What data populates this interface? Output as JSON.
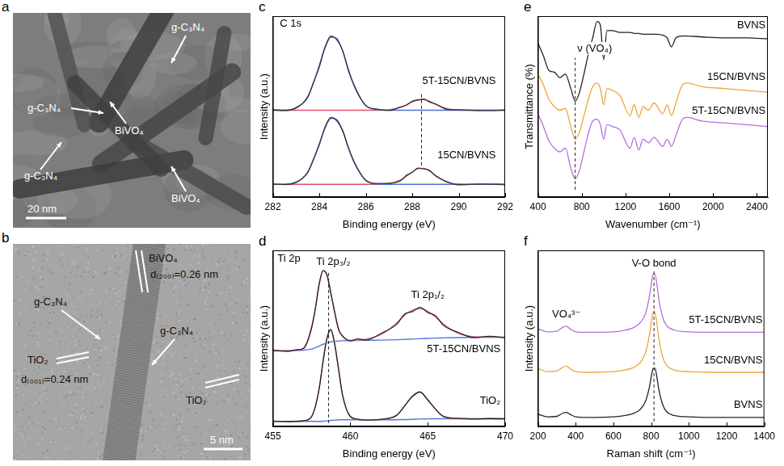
{
  "images": [
    {
      "panel": "a",
      "annotations": [
        "g-C₃N₄",
        "g-C₃N₄",
        "BiVO₄",
        "g-C₃N₄",
        "BiVO₄"
      ],
      "scale_bar": "20 nm"
    },
    {
      "panel": "b",
      "annotations": [
        "BiVO₄",
        "d₍₂₀₀₎=0.26 nm",
        "g-C₃N₄",
        "g-C₃N₄",
        "TiO₂",
        "d₍₀₀₁₎=0.24 nm",
        "TiO₂"
      ],
      "scale_bar": "5 nm"
    }
  ],
  "chart_data": [
    {
      "panel": "c",
      "type": "line",
      "title": "C 1s",
      "x_label": "Binding energy (eV)",
      "y_label": "Intensity (a.u.)",
      "x": [
        282,
        282.5,
        283,
        283.5,
        283.75,
        284,
        284.25,
        284.5,
        284.75,
        285,
        285.25,
        285.5,
        286,
        286.5,
        287,
        287.5,
        287.75,
        288,
        288.25,
        288.5,
        288.75,
        289,
        289.5,
        290,
        291,
        292
      ],
      "xlim": [
        282,
        292
      ],
      "xticks": [
        282,
        284,
        286,
        288,
        290,
        292
      ],
      "ylim": [
        0,
        10
      ],
      "tick_labels": "x",
      "grid": false,
      "reference_lines": [
        288.4
      ],
      "series": [
        {
          "name": "5T-15CN/BVNS",
          "color": "#333333",
          "values": [
            4.83,
            4.78,
            4.95,
            5.5,
            6.35,
            7.2,
            8.3,
            8.9,
            8.7,
            8.12,
            7.0,
            6.18,
            5.05,
            4.86,
            4.79,
            4.98,
            5.08,
            5.3,
            5.36,
            5.42,
            5.25,
            5.15,
            4.85,
            4.83,
            4.78,
            4.81
          ],
          "components": [
            {
              "color": "#4a72d6",
              "values": [
                4.8,
                4.81,
                4.91,
                5.56,
                6.3,
                7.29,
                8.26,
                8.84,
                8.77,
                8.08,
                7.08,
                6.13,
                5.07,
                4.83,
                4.8,
                4.8,
                4.8,
                4.8,
                4.8,
                4.8,
                4.8,
                4.8,
                4.8,
                4.8,
                4.8,
                4.8
              ]
            },
            {
              "color": "#e0506a",
              "values": [
                4.8,
                4.8,
                4.8,
                4.8,
                4.8,
                4.8,
                4.8,
                4.8,
                4.8,
                4.8,
                4.8,
                4.8,
                4.8,
                4.8,
                4.82,
                4.96,
                5.1,
                5.26,
                5.38,
                5.39,
                5.29,
                5.13,
                4.88,
                4.81,
                4.8,
                4.8
              ]
            }
          ]
        },
        {
          "name": "15CN/BVNS",
          "color": "#333333",
          "values": [
            0.72,
            0.69,
            0.83,
            1.35,
            2.1,
            2.9,
            3.88,
            4.4,
            4.22,
            3.7,
            2.72,
            1.95,
            0.92,
            0.75,
            0.76,
            0.91,
            1.2,
            1.36,
            1.6,
            1.56,
            1.47,
            1.17,
            0.84,
            0.68,
            0.72,
            0.69
          ],
          "components": [
            {
              "color": "#4a72d6",
              "values": [
                0.7,
                0.71,
                0.8,
                1.39,
                2.06,
                2.95,
                3.82,
                4.35,
                4.29,
                3.66,
                2.76,
                1.9,
                0.94,
                0.72,
                0.7,
                0.7,
                0.7,
                0.7,
                0.7,
                0.7,
                0.7,
                0.7,
                0.7,
                0.7,
                0.7,
                0.7
              ]
            },
            {
              "color": "#e0506a",
              "values": [
                0.7,
                0.7,
                0.7,
                0.7,
                0.7,
                0.7,
                0.7,
                0.7,
                0.7,
                0.7,
                0.7,
                0.7,
                0.7,
                0.7,
                0.74,
                0.94,
                1.15,
                1.39,
                1.57,
                1.59,
                1.44,
                1.2,
                0.82,
                0.71,
                0.7,
                0.7
              ]
            }
          ]
        }
      ]
    },
    {
      "panel": "d",
      "type": "line",
      "title": "Ti 2p",
      "x_label": "Binding energy (eV)",
      "y_label": "Intensity (a.u.)",
      "x": [
        455,
        456,
        456.5,
        457,
        457.5,
        457.75,
        458,
        458.25,
        458.5,
        458.75,
        459,
        459.25,
        459.5,
        460,
        460.5,
        461,
        462,
        463,
        463.5,
        464,
        464.5,
        465,
        465.5,
        466,
        467,
        468,
        469,
        470
      ],
      "xlim": [
        455,
        470
      ],
      "xticks": [
        455,
        460,
        465,
        470
      ],
      "ylim": [
        0,
        10.5
      ],
      "tick_labels": "x",
      "grid": false,
      "reference_lines": [
        458.6
      ],
      "annotations": [
        "Ti 2p₃/₂",
        "Ti 2p₁/₂"
      ],
      "series": [
        {
          "name": "5T-15CN/BVNS",
          "color": "#222222",
          "values": [
            4.55,
            4.48,
            4.57,
            4.66,
            5.9,
            7.05,
            8.55,
            9.3,
            9.0,
            7.9,
            6.8,
            5.75,
            5.4,
            5.1,
            5.22,
            5.15,
            5.55,
            6.1,
            6.7,
            6.85,
            7.1,
            6.8,
            6.6,
            6.05,
            5.6,
            5.3,
            5.38,
            5.28
          ],
          "components": [
            {
              "color": "#e0708c",
              "values": [
                4.5,
                4.52,
                4.54,
                4.7,
                5.84,
                7.1,
                8.47,
                9.28,
                9.04,
                7.97,
                6.73,
                5.82,
                5.36,
                5.14,
                5.15,
                5.2,
                5.48,
                6.18,
                6.61,
                6.93,
                7.02,
                6.87,
                6.53,
                6.12,
                5.54,
                5.35,
                5.32,
                5.33
              ]
            },
            {
              "color": "#4f77d8",
              "values": [
                4.5,
                4.52,
                4.53,
                4.55,
                4.62,
                4.7,
                4.8,
                4.9,
                4.98,
                5.04,
                5.08,
                5.1,
                5.11,
                5.12,
                5.13,
                5.14,
                5.15,
                5.17,
                5.19,
                5.21,
                5.23,
                5.25,
                5.27,
                5.28,
                5.3,
                5.31,
                5.32,
                5.33
              ]
            }
          ]
        },
        {
          "name": "TiO₂",
          "color": "#222222",
          "values": [
            0.32,
            0.29,
            0.31,
            0.34,
            0.58,
            1.22,
            2.3,
            3.95,
            5.28,
            5.78,
            4.85,
            3.38,
            1.86,
            0.6,
            0.43,
            0.38,
            0.43,
            0.66,
            1.22,
            1.78,
            2.06,
            1.58,
            1.04,
            0.6,
            0.48,
            0.44,
            0.47,
            0.45
          ],
          "components": [
            {
              "color": "#e0708c",
              "values": [
                0.3,
                0.3,
                0.3,
                0.32,
                0.6,
                1.19,
                2.33,
                3.91,
                5.31,
                5.73,
                4.89,
                3.34,
                1.9,
                0.58,
                0.41,
                0.4,
                0.41,
                0.68,
                1.19,
                1.81,
                2.03,
                1.61,
                1.01,
                0.62,
                0.46,
                0.46,
                0.46,
                0.46
              ]
            },
            {
              "color": "#4f77d8",
              "values": [
                0.3,
                0.3,
                0.3,
                0.3,
                0.3,
                0.3,
                0.3,
                0.31,
                0.33,
                0.36,
                0.38,
                0.39,
                0.4,
                0.4,
                0.4,
                0.4,
                0.4,
                0.4,
                0.41,
                0.42,
                0.44,
                0.45,
                0.46,
                0.46,
                0.46,
                0.46,
                0.46,
                0.46
              ]
            }
          ]
        }
      ]
    },
    {
      "panel": "e",
      "type": "line",
      "x_label": "Wavenumber (cm⁻¹)",
      "y_label": "Transmittance (%)",
      "x": [
        400,
        450,
        500,
        550,
        600,
        650,
        700,
        740,
        780,
        820,
        860,
        900,
        940,
        970,
        1000,
        1030,
        1080,
        1150,
        1240,
        1280,
        1320,
        1360,
        1410,
        1460,
        1540,
        1580,
        1620,
        1660,
        1720,
        1760,
        1900,
        2100,
        2300,
        2500
      ],
      "xlim": [
        400,
        2500
      ],
      "xticks": [
        400,
        800,
        1200,
        1600,
        2000,
        2400
      ],
      "ylim": [
        0,
        10
      ],
      "tick_labels": "x",
      "grid": false,
      "reference_lines": [
        740
      ],
      "annotations": [
        "ν (VO₄)"
      ],
      "series": [
        {
          "name": "BVNS",
          "color": "#222222",
          "values": [
            8.5,
            7.8,
            7.0,
            6.9,
            6.6,
            6.8,
            6.0,
            5.3,
            5.8,
            6.8,
            7.9,
            8.8,
            9.7,
            9.5,
            7.6,
            9.2,
            9.2,
            9.1,
            9.1,
            9.05,
            9.05,
            9.0,
            9.0,
            9.0,
            8.95,
            8.8,
            8.3,
            8.8,
            8.9,
            8.9,
            8.85,
            8.8,
            8.8,
            8.75
          ]
        },
        {
          "name": "15CN/BVNS",
          "color": "#f0a33a",
          "values": [
            6.8,
            6.2,
            5.4,
            5.0,
            4.8,
            4.9,
            3.9,
            3.2,
            3.6,
            4.5,
            5.4,
            6.1,
            6.3,
            6.0,
            5.1,
            6.0,
            5.9,
            5.6,
            4.5,
            5.1,
            4.4,
            5.0,
            4.8,
            5.2,
            4.6,
            5.1,
            4.5,
            5.2,
            6.2,
            6.3,
            6.1,
            6.0,
            5.9,
            5.8
          ]
        },
        {
          "name": "5T-15CN/BVNS",
          "color": "#b36ee0",
          "values": [
            4.6,
            3.9,
            3.1,
            2.7,
            2.5,
            2.7,
            1.6,
            1.0,
            1.5,
            2.5,
            3.5,
            4.2,
            4.3,
            4.0,
            3.2,
            4.0,
            3.9,
            3.7,
            2.7,
            3.3,
            2.6,
            3.2,
            3.0,
            3.3,
            2.8,
            3.2,
            2.8,
            3.4,
            4.3,
            4.4,
            4.2,
            4.1,
            4.0,
            3.9
          ]
        }
      ]
    },
    {
      "panel": "f",
      "type": "line",
      "x_label": "Raman shift (cm⁻¹)",
      "y_label": "Intensity (a.u.)",
      "x": [
        200,
        250,
        300,
        330,
        350,
        370,
        400,
        450,
        500,
        600,
        650,
        700,
        740,
        770,
        790,
        800,
        810,
        820,
        830,
        840,
        860,
        880,
        920,
        1000,
        1100,
        1200,
        1300,
        1400
      ],
      "xlim": [
        200,
        1400
      ],
      "xticks": [
        200,
        400,
        600,
        800,
        1000,
        1200,
        1400
      ],
      "ylim": [
        0,
        11
      ],
      "tick_labels": "x",
      "grid": false,
      "reference_lines": [
        815
      ],
      "annotations": [
        "VO₄³⁻",
        "V-O bond"
      ],
      "series": [
        {
          "name": "5T-15CN/BVNS",
          "color": "#b36ee0",
          "values": [
            6.1,
            5.91,
            5.95,
            6.18,
            6.26,
            6.1,
            5.91,
            5.88,
            5.88,
            5.91,
            5.99,
            6.14,
            6.45,
            7.05,
            8.08,
            8.84,
            9.49,
            9.52,
            8.92,
            8.0,
            6.86,
            6.33,
            6.03,
            5.91,
            5.88,
            5.88,
            5.88,
            5.88
          ]
        },
        {
          "name": "15CN/BVNS",
          "color": "#f0a33a",
          "values": [
            3.61,
            3.42,
            3.46,
            3.69,
            3.77,
            3.61,
            3.42,
            3.38,
            3.38,
            3.42,
            3.5,
            3.65,
            3.96,
            4.59,
            5.64,
            6.42,
            7.08,
            7.12,
            6.5,
            5.56,
            4.39,
            3.85,
            3.53,
            3.42,
            3.38,
            3.38,
            3.38,
            3.38
          ]
        },
        {
          "name": "BVNS",
          "color": "#222222",
          "values": [
            0.76,
            0.6,
            0.63,
            0.82,
            0.88,
            0.76,
            0.6,
            0.56,
            0.56,
            0.6,
            0.66,
            0.79,
            1.04,
            1.56,
            2.42,
            3.06,
            3.6,
            3.64,
            3.12,
            2.36,
            1.4,
            0.95,
            0.69,
            0.6,
            0.56,
            0.56,
            0.56,
            0.56
          ]
        }
      ]
    }
  ]
}
